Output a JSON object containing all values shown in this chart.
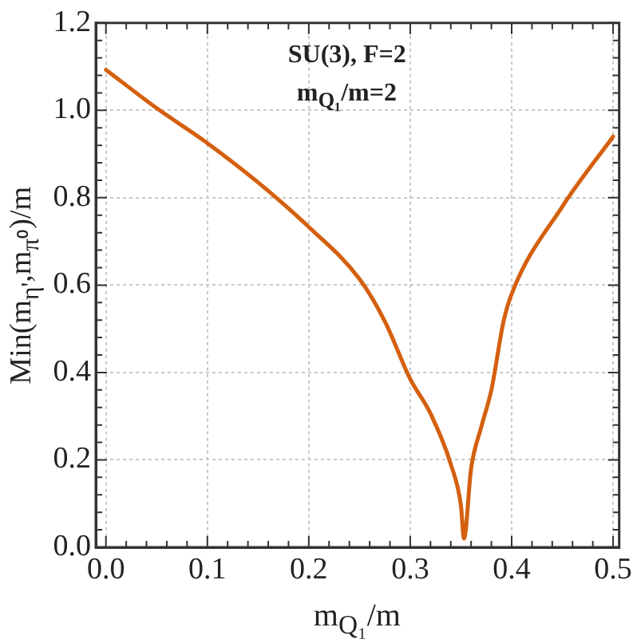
{
  "chart_data": {
    "type": "line",
    "xlabel": "m$_{Q₁}$/m",
    "ylabel": "Min(m$_{η'}$,m$_{π⁰}$)/m",
    "annotations": [
      "SU(3), F=2",
      "m$_{Q₁}$/m=2"
    ],
    "series": [
      {
        "color": "#d4600f",
        "x": [
          0,
          0.05,
          0.1,
          0.15,
          0.2,
          0.25,
          0.275,
          0.3,
          0.32,
          0.34,
          0.35,
          0.353,
          0.36,
          0.37,
          0.38,
          0.392,
          0.4,
          0.45,
          0.5
        ],
        "values": [
          1.093,
          1.005,
          0.925,
          0.835,
          0.733,
          0.614,
          0.517,
          0.385,
          0.306,
          0.19,
          0.095,
          0.02,
          0.18,
          0.275,
          0.36,
          0.517,
          0.58,
          0.78,
          0.94
        ]
      }
    ],
    "xlim": [
      -0.01,
      0.506
    ],
    "xticks": [
      {
        "value": 0,
        "label": "0.0"
      },
      0.1,
      0.2,
      0.3,
      0.4,
      0.5
    ],
    "ylim": [
      0,
      1.2
    ],
    "yticks": [
      {
        "value": 0,
        "label": "0.0"
      },
      0.2,
      0.4,
      0.6,
      0.8,
      {
        "value": 1,
        "label": "1.0"
      },
      1.2
    ],
    "grid": true,
    "marker": "none",
    "line_style": "solid",
    "legend": false
  }
}
